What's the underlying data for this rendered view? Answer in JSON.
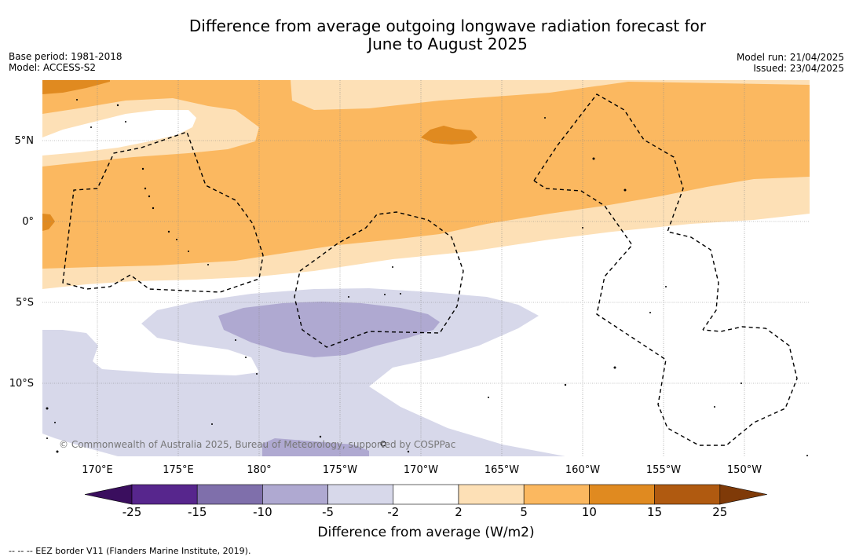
{
  "title_line1": "Difference from average outgoing longwave radiation forecast for",
  "title_line2": "June to August 2025",
  "base_period": "Base period: 1981-2018",
  "model": "Model: ACCESS-S2",
  "model_run": "Model run: 21/04/2025",
  "issued": "Issued: 23/04/2025",
  "lat_labels": [
    "5°N",
    "0°",
    "5°S",
    "10°S"
  ],
  "lon_labels": [
    "170°E",
    "175°E",
    "180°",
    "175°W",
    "170°W",
    "165°W",
    "160°W",
    "155°W",
    "150°W"
  ],
  "copyright": "© Commonwealth of Australia 2025, Bureau of Meteorology, supported by COSPPac",
  "colorbar": {
    "ticks": [
      "-25",
      "-15",
      "-10",
      "-5",
      "-2",
      "2",
      "5",
      "10",
      "15",
      "25"
    ],
    "colors": [
      "#3a0e5e",
      "#57268d",
      "#7f6fab",
      "#afa9d1",
      "#d7d8ea",
      "#ffffff",
      "#fde0b6",
      "#fbb860",
      "#e08a20",
      "#b05a10",
      "#7f3a08"
    ],
    "title": "Difference from average (W/m2)"
  },
  "legend_text": "--  --  -- EEZ border V11 (Flanders Marine Institute, 2019)."
}
